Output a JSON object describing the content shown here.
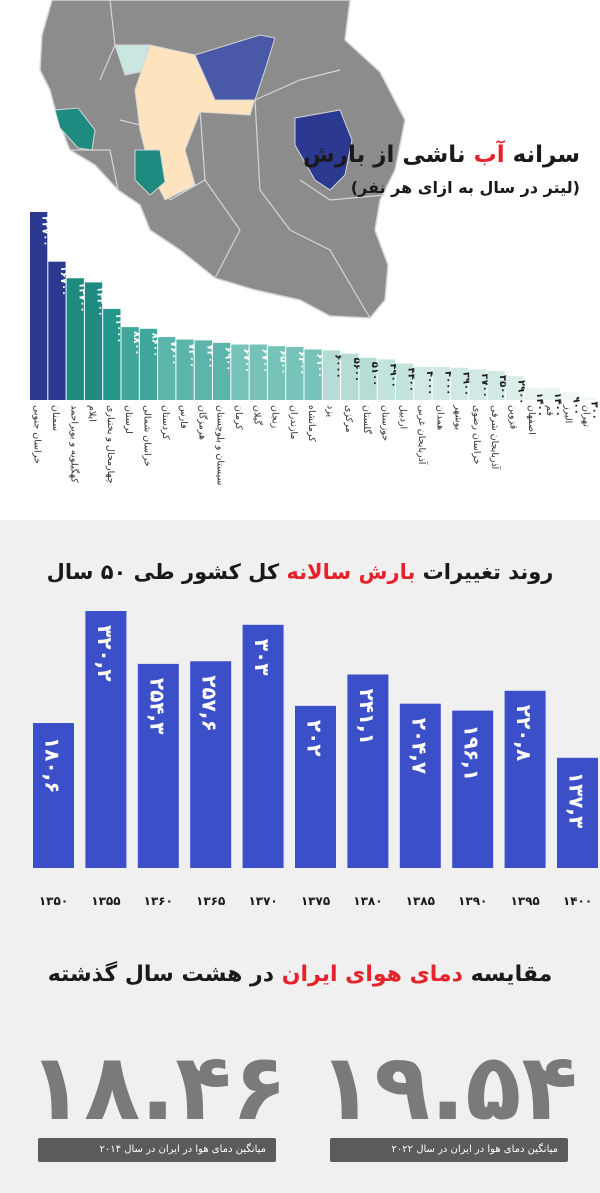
{
  "section1": {
    "title_pre": "سرانه",
    "title_highlight": "آب",
    "title_post": "ناشی از بارش",
    "subtitle": "(لیتر در سال به ازای هر نفر)"
  },
  "section2": {
    "title_pre": "روند تغییرات",
    "title_highlight": "بارش سالانه",
    "title_post": "کل کشور طی ۵۰ سال"
  },
  "section3": {
    "title_pre": "مقایسه",
    "title_highlight": "دمای هوای ایران",
    "title_post": "در هشت سال گذشته",
    "left_value": "۱۸.۴۶",
    "left_caption": "میانگین دمای هوا در ایران در سال ۲۰۱۴",
    "right_value": "۱۹.۵۴",
    "right_caption": "میانگین دمای هوا در ایران در سال ۲۰۲۲"
  },
  "chart_data": [
    {
      "type": "bar",
      "categories": [
        "خراسان جنوبی",
        "سمنان",
        "کهگیلویه و بویراحمد",
        "ایلام",
        "چهارمحال و بختیاری",
        "لرستان",
        "خراسان شمالی",
        "کردستان",
        "فارس",
        "هرمزگان",
        "سیستان و بلوچستان",
        "کرمان",
        "گیلان",
        "زنجان",
        "مازندران",
        "کرمانشاه",
        "یزد",
        "مرکزی",
        "گلستان",
        "خوزستان",
        "اردبیل",
        "آذربایجان غربی",
        "همدان",
        "بوشهر",
        "خراسان رضوی",
        "آذربایجان شرقی",
        "قزوین",
        "اصفهان",
        "قم",
        "البرز",
        "تهران"
      ],
      "values": [
        22700,
        16700,
        14700,
        14200,
        11000,
        8800,
        8600,
        7600,
        7300,
        7200,
        6900,
        6700,
        6700,
        6500,
        6400,
        6100,
        6000,
        5600,
        5100,
        4900,
        4400,
        4000,
        4000,
        3900,
        3700,
        3500,
        2900,
        1400,
        1400,
        900,
        300
      ],
      "value_labels": [
        "۲۲۷۰۰",
        "۱۶۷۰۰",
        "۱۴۷۰۰",
        "۱۴۲۰۰",
        "۱۱۰۰۰",
        "۸۸۰۰",
        "۸۶۰۰",
        "۷۶۰۰",
        "۷۳۰۰",
        "۷۲۰۰",
        "۶۹۰۰",
        "۶۷۰۰",
        "۶۷۰۰",
        "۶۵۰۰",
        "۶۴۰۰",
        "۶۱۰۰",
        "۶۰۰۰",
        "۵۶۰۰",
        "۵۱۰۰",
        "۴۹۰۰",
        "۴۴۰۰",
        "۴۰۰۰",
        "۴۰۰۰",
        "۳۹۰۰",
        "۳۷۰۰",
        "۳۵۰۰",
        "۲۹۰۰",
        "۱۴۰۰",
        "۱۴۰۰",
        "۹۰۰",
        "۳۰۰"
      ],
      "colors": [
        "#2b3990",
        "#2b3990",
        "#1f8a80",
        "#1f8a80",
        "#24978d",
        "#41a79d",
        "#41a79d",
        "#5cb5ab",
        "#5cb5ab",
        "#5cb5ab",
        "#5cb5ab",
        "#77c3b9",
        "#77c3b9",
        "#77c3b9",
        "#77c3b9",
        "#77c3b9",
        "#b5ddd6",
        "#b5ddd6",
        "#b5ddd6",
        "#c3e3dd",
        "#c3e3dd",
        "#d0e9e4",
        "#d0e9e4",
        "#d0e9e4",
        "#d0e9e4",
        "#d0e9e4",
        "#dceee9",
        "#e6f3f0",
        "#e6f3f0",
        "#eef7f5",
        "#eef7f5"
      ]
    },
    {
      "type": "bar",
      "categories": [
        "۱۳۵۰",
        "۱۳۵۵",
        "۱۳۶۰",
        "۱۳۶۵",
        "۱۳۷۰",
        "۱۳۷۵",
        "۱۳۸۰",
        "۱۳۸۵",
        "۱۳۹۰",
        "۱۳۹۵",
        "۱۴۰۰"
      ],
      "values": [
        180.6,
        320.2,
        254.3,
        257.6,
        303,
        202,
        241.1,
        204.7,
        196.1,
        220.8,
        137.3
      ],
      "value_labels": [
        "۱۸۰,۶",
        "۳۲۰,۲",
        "۲۵۴,۳",
        "۲۵۷,۶",
        "۳۰۳",
        "۲۰۲",
        "۲۴۱,۱",
        "۲۰۴,۷",
        "۱۹۶,۱",
        "۲۲۰,۸",
        "۱۳۷,۳"
      ],
      "color": "#3b4fc8"
    }
  ],
  "map": {
    "colors": {
      "land": "#8c8c8c",
      "border": "#d5d5d5",
      "dark_blue": "#2b3990",
      "mid_blue": "#4a58a8",
      "teal": "#1f8a80",
      "light_teal": "#c9e6e1",
      "cream": "#fde4bf"
    }
  }
}
